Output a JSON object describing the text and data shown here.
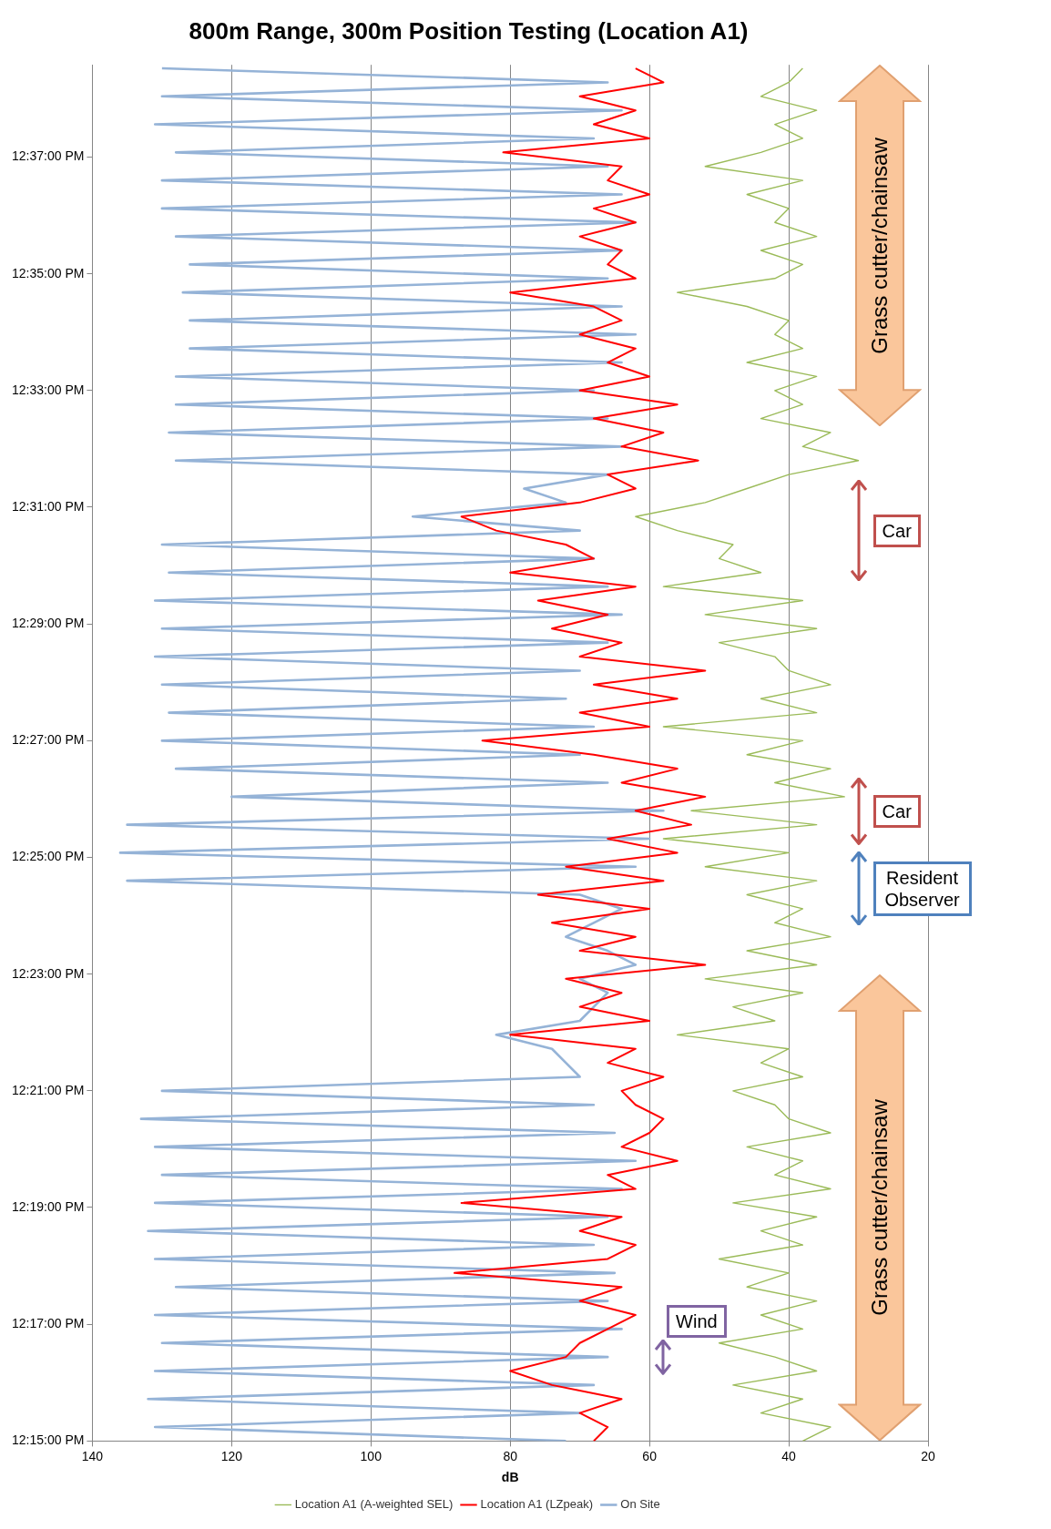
{
  "chart_data": {
    "type": "line",
    "title": "800m Range, 300m Position Testing (Location A1)",
    "xlabel": "dB",
    "series": [
      {
        "name": "On Site",
        "color": "#95b3d7",
        "x": [
          72,
          131,
          70,
          132,
          68,
          131,
          66,
          130,
          64,
          131,
          66,
          128,
          65,
          131,
          68,
          132,
          66,
          131,
          64,
          130,
          62,
          131,
          65,
          133,
          68,
          130,
          70,
          72,
          74,
          82,
          70,
          68,
          66,
          70,
          62,
          66,
          72,
          68,
          64,
          70,
          135,
          62,
          136,
          60,
          135,
          58,
          120,
          66,
          128,
          70,
          130,
          68,
          129,
          72,
          130,
          70,
          131,
          66,
          130,
          64,
          131,
          66,
          129,
          68,
          130,
          70,
          94,
          72,
          78,
          66,
          128,
          64,
          129,
          66,
          128,
          68,
          128,
          64,
          126,
          62,
          126,
          64,
          127,
          66,
          126,
          64,
          128,
          62,
          130,
          64,
          130,
          66,
          128,
          68,
          131,
          64,
          130,
          66,
          130
        ],
        "values": [
          12.25,
          12.254,
          12.258,
          12.262,
          12.266,
          12.27,
          12.274,
          12.278,
          12.282,
          12.286,
          12.29,
          12.294,
          12.298,
          12.302,
          12.306,
          12.31,
          12.314,
          12.318,
          12.322,
          12.326,
          12.33,
          12.334,
          12.338,
          12.342,
          12.346,
          12.35,
          12.354,
          12.358,
          12.362,
          12.366,
          12.37,
          12.374,
          12.378,
          12.382,
          12.386,
          12.39,
          12.394,
          12.398,
          12.402,
          12.406,
          12.41,
          12.414,
          12.418,
          12.422,
          12.426,
          12.43,
          12.434,
          12.438,
          12.442,
          12.446,
          12.45,
          12.454,
          12.458,
          12.462,
          12.466,
          12.47,
          12.474,
          12.478,
          12.482,
          12.486,
          12.49,
          12.494,
          12.498,
          12.502,
          12.506,
          12.51,
          12.514,
          12.518,
          12.522,
          12.526,
          12.53,
          12.534,
          12.538,
          12.542,
          12.546,
          12.55,
          12.554,
          12.558,
          12.562,
          12.566,
          12.57,
          12.574,
          12.578,
          12.582,
          12.586,
          12.59,
          12.594,
          12.598,
          12.602,
          12.606,
          12.61,
          12.614,
          12.618,
          12.622,
          12.626,
          12.63,
          12.634,
          12.638,
          12.642
        ]
      },
      {
        "name": "Location A1 (LZpeak)",
        "color": "#ff0000",
        "x": [
          68,
          66,
          70,
          64,
          74,
          80,
          72,
          70,
          66,
          62,
          70,
          64,
          88,
          66,
          62,
          70,
          64,
          87,
          62,
          66,
          56,
          64,
          60,
          58,
          62,
          64,
          58,
          66,
          62,
          80,
          60,
          70,
          64,
          72,
          52,
          70,
          62,
          74,
          60,
          76,
          58,
          72,
          56,
          66,
          54,
          62,
          52,
          64,
          56,
          68,
          84,
          60,
          70,
          56,
          68,
          52,
          70,
          64,
          74,
          66,
          76,
          62,
          80,
          68,
          72,
          82,
          87,
          70,
          62,
          66,
          53,
          64,
          58,
          68,
          56,
          70,
          60,
          66,
          62,
          70,
          64,
          68,
          80,
          62,
          66,
          64,
          70,
          62,
          68,
          60,
          66,
          64,
          81,
          60,
          68,
          62,
          70,
          58,
          62
        ],
        "values": [
          12.25,
          12.254,
          12.258,
          12.262,
          12.266,
          12.27,
          12.274,
          12.278,
          12.282,
          12.286,
          12.29,
          12.294,
          12.298,
          12.302,
          12.306,
          12.31,
          12.314,
          12.318,
          12.322,
          12.326,
          12.33,
          12.334,
          12.338,
          12.342,
          12.346,
          12.35,
          12.354,
          12.358,
          12.362,
          12.366,
          12.37,
          12.374,
          12.378,
          12.382,
          12.386,
          12.39,
          12.394,
          12.398,
          12.402,
          12.406,
          12.41,
          12.414,
          12.418,
          12.422,
          12.426,
          12.43,
          12.434,
          12.438,
          12.442,
          12.446,
          12.45,
          12.454,
          12.458,
          12.462,
          12.466,
          12.47,
          12.474,
          12.478,
          12.482,
          12.486,
          12.49,
          12.494,
          12.498,
          12.502,
          12.506,
          12.51,
          12.514,
          12.518,
          12.522,
          12.526,
          12.53,
          12.534,
          12.538,
          12.542,
          12.546,
          12.55,
          12.554,
          12.558,
          12.562,
          12.566,
          12.57,
          12.574,
          12.578,
          12.582,
          12.586,
          12.59,
          12.594,
          12.598,
          12.602,
          12.606,
          12.61,
          12.614,
          12.618,
          12.622,
          12.626,
          12.63,
          12.634,
          12.638,
          12.642
        ]
      },
      {
        "name": "Location A1 (A-weighted SEL)",
        "color": "#9bbb59",
        "x": [
          38,
          34,
          44,
          38,
          48,
          36,
          42,
          50,
          38,
          44,
          36,
          46,
          40,
          50,
          38,
          44,
          36,
          48,
          34,
          42,
          38,
          46,
          34,
          40,
          42,
          48,
          38,
          44,
          40,
          56,
          42,
          48,
          38,
          52,
          36,
          46,
          34,
          42,
          38,
          46,
          36,
          52,
          40,
          58,
          36,
          54,
          32,
          42,
          34,
          46,
          38,
          58,
          36,
          44,
          34,
          40,
          42,
          50,
          36,
          52,
          38,
          58,
          44,
          50,
          48,
          56,
          62,
          52,
          46,
          40,
          30,
          38,
          34,
          44,
          38,
          42,
          36,
          46,
          38,
          42,
          40,
          46,
          56,
          42,
          38,
          44,
          36,
          42,
          40,
          46,
          38,
          52,
          44,
          38,
          42,
          36,
          44,
          40,
          38
        ],
        "values": [
          12.25,
          12.254,
          12.258,
          12.262,
          12.266,
          12.27,
          12.274,
          12.278,
          12.282,
          12.286,
          12.29,
          12.294,
          12.298,
          12.302,
          12.306,
          12.31,
          12.314,
          12.318,
          12.322,
          12.326,
          12.33,
          12.334,
          12.338,
          12.342,
          12.346,
          12.35,
          12.354,
          12.358,
          12.362,
          12.366,
          12.37,
          12.374,
          12.378,
          12.382,
          12.386,
          12.39,
          12.394,
          12.398,
          12.402,
          12.406,
          12.41,
          12.414,
          12.418,
          12.422,
          12.426,
          12.43,
          12.434,
          12.438,
          12.442,
          12.446,
          12.45,
          12.454,
          12.458,
          12.462,
          12.466,
          12.47,
          12.474,
          12.478,
          12.482,
          12.486,
          12.49,
          12.494,
          12.498,
          12.502,
          12.506,
          12.51,
          12.514,
          12.518,
          12.522,
          12.526,
          12.53,
          12.534,
          12.538,
          12.542,
          12.546,
          12.55,
          12.554,
          12.558,
          12.562,
          12.566,
          12.57,
          12.574,
          12.578,
          12.582,
          12.586,
          12.59,
          12.594,
          12.598,
          12.602,
          12.606,
          12.61,
          12.614,
          12.618,
          12.622,
          12.626,
          12.63,
          12.634,
          12.638,
          12.642
        ]
      }
    ],
    "xlim": [
      140,
      20
    ],
    "xticks": [
      20,
      40,
      60,
      80,
      100,
      120,
      140
    ],
    "ylim": [
      12.25,
      12.643
    ],
    "yticks": [
      {
        "value": 12.25,
        "label": "12:15:00 PM"
      },
      {
        "value": 12.2833,
        "label": "12:17:00 PM"
      },
      {
        "value": 12.3167,
        "label": "12:19:00 PM"
      },
      {
        "value": 12.35,
        "label": "12:21:00 PM"
      },
      {
        "value": 12.3833,
        "label": "12:23:00 PM"
      },
      {
        "value": 12.4167,
        "label": "12:25:00 PM"
      },
      {
        "value": 12.45,
        "label": "12:27:00 PM"
      },
      {
        "value": 12.4833,
        "label": "12:29:00 PM"
      },
      {
        "value": 12.5167,
        "label": "12:31:00 PM"
      },
      {
        "value": 12.55,
        "label": "12:33:00 PM"
      },
      {
        "value": 12.5833,
        "label": "12:35:00 PM"
      },
      {
        "value": 12.6167,
        "label": "12:37:00 PM"
      }
    ],
    "grid": "x",
    "legend": "bottom",
    "marker": "none",
    "line_style": "solid",
    "annotations": [
      "Grass cutter/chainsaw",
      "Wind",
      "Resident Observer",
      "Car",
      "Car",
      "Grass cutter/chainsaw"
    ]
  }
}
